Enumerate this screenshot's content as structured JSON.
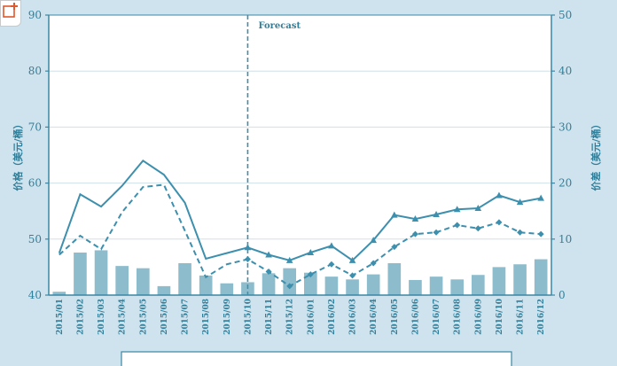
{
  "colors": {
    "background": "#cfe3ee",
    "plot": "#ffffff",
    "axis": "#3b87a3",
    "grid": "#cfe0e8",
    "bars": "#8dbccd",
    "line": "#3d8fae"
  },
  "icons": {
    "corner": "add-tab-icon"
  },
  "chart_data": {
    "type": "bar+line",
    "title": "",
    "categories": [
      "2015/01",
      "2015/02",
      "2015/03",
      "2015/04",
      "2015/05",
      "2015/06",
      "2015/07",
      "2015/08",
      "2015/09",
      "2015/10",
      "2015/11",
      "2015/12",
      "2016/01",
      "2016/02",
      "2016/03",
      "2016/04",
      "2016/05",
      "2016/06",
      "2016/07",
      "2016/08",
      "2016/09",
      "2016/10",
      "2016/11",
      "2016/12"
    ],
    "y_left": {
      "label": "价格（美元/桶）",
      "range": [
        40,
        90
      ],
      "ticks": [
        40,
        50,
        60,
        70,
        80,
        90
      ]
    },
    "y_right": {
      "label": "价差（美元/桶）",
      "range": [
        0,
        50
      ],
      "ticks": [
        0,
        10,
        20,
        30,
        40,
        50
      ]
    },
    "grid": true,
    "annotation": {
      "text": "Forecast",
      "at_category": "2015/10"
    },
    "series": [
      {
        "type": "line",
        "style": "solid",
        "marker_from": "2015/10",
        "axis": "left",
        "values": [
          47.5,
          58.0,
          55.8,
          59.5,
          64.0,
          61.5,
          56.5,
          46.5,
          47.5,
          48.5,
          47.2,
          46.2,
          47.6,
          48.8,
          46.2,
          49.8,
          54.3,
          53.6,
          54.4,
          55.3,
          55.5,
          57.8,
          56.6,
          57.3
        ]
      },
      {
        "type": "line",
        "style": "dashed",
        "marker_from": "2015/10",
        "axis": "left",
        "values": [
          47.2,
          50.6,
          48.2,
          54.8,
          59.3,
          59.7,
          51.5,
          43.2,
          45.5,
          46.4,
          44.2,
          41.6,
          43.7,
          45.5,
          43.5,
          45.7,
          48.6,
          50.9,
          51.2,
          52.5,
          51.9,
          53.0,
          51.2,
          50.9
        ]
      },
      {
        "type": "bar",
        "axis": "right",
        "values": [
          0.6,
          7.6,
          8.0,
          5.2,
          4.8,
          1.6,
          5.7,
          3.5,
          2.1,
          2.3,
          3.9,
          4.8,
          4.0,
          3.3,
          2.8,
          3.7,
          5.7,
          2.7,
          3.3,
          2.8,
          3.6,
          5.0,
          5.5,
          6.4
        ]
      }
    ]
  }
}
